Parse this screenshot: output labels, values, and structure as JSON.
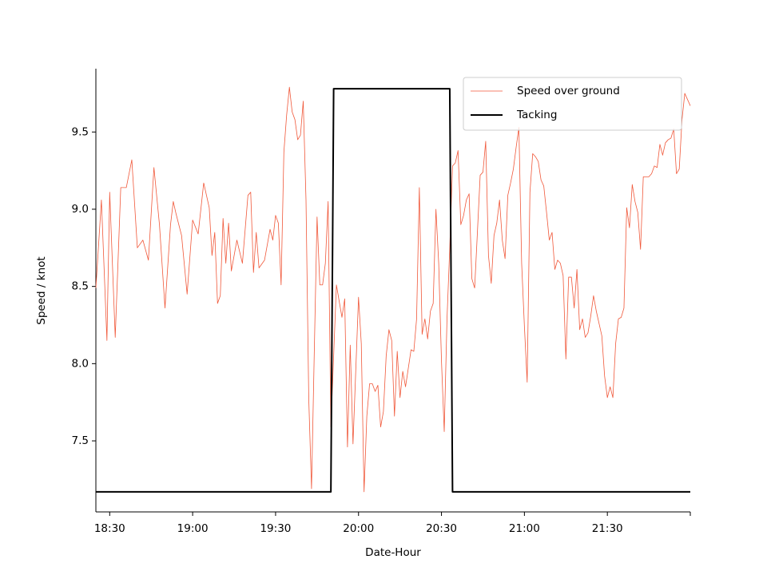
{
  "chart_data": {
    "type": "line",
    "xlabel": "Date-Hour",
    "ylabel": "Speed / knot",
    "xlim": [
      "18:25",
      "22:00"
    ],
    "xticks": [
      "18:30",
      "19:00",
      "19:30",
      "20:00",
      "20:30",
      "21:00",
      "21:30"
    ],
    "ylim": [
      7.04,
      9.91
    ],
    "yticks": [
      7.5,
      {
        "value": 8,
        "label": "8.0"
      },
      8.5,
      {
        "value": 9,
        "label": "9.0"
      },
      9.5
    ],
    "legend": "upper right",
    "series": [
      {
        "name": "Speed over ground",
        "color": "#f0583a",
        "x": [
          "18:25",
          "18:27",
          "18:29",
          "18:30",
          "18:32",
          "18:34",
          "18:36",
          "18:38",
          "18:40",
          "18:42",
          "18:44",
          "18:46",
          "18:48",
          "18:50",
          "18:52",
          "18:53",
          "18:54",
          "18:56",
          "18:58",
          "19:00",
          "19:02",
          "19:04",
          "19:06",
          "19:07",
          "19:08",
          "19:09",
          "19:10",
          "19:11",
          "19:12",
          "19:13",
          "19:14",
          "19:16",
          "19:18",
          "19:20",
          "19:21",
          "19:22",
          "19:23",
          "19:24",
          "19:26",
          "19:28",
          "19:29",
          "19:30",
          "19:31",
          "19:32",
          "19:33",
          "19:34",
          "19:35",
          "19:36",
          "19:37",
          "19:38",
          "19:39",
          "19:40",
          "19:41",
          "19:42",
          "19:43",
          "19:44",
          "19:45",
          "19:46",
          "19:47",
          "19:48",
          "19:49",
          "19:50",
          "19:52",
          "19:54",
          "19:55",
          "19:56",
          "19:57",
          "19:58",
          "20:00",
          "20:01",
          "20:02",
          "20:03",
          "20:04",
          "20:05",
          "20:06",
          "20:07",
          "20:08",
          "20:09",
          "20:10",
          "20:11",
          "20:12",
          "20:13",
          "20:14",
          "20:15",
          "20:16",
          "20:17",
          "20:18",
          "20:19",
          "20:20",
          "20:21",
          "20:22",
          "20:23",
          "20:24",
          "20:25",
          "20:26",
          "20:27",
          "20:28",
          "20:29",
          "20:30",
          "20:31",
          "20:32",
          "20:33",
          "20:34",
          "20:35",
          "20:36",
          "20:37",
          "20:38",
          "20:39",
          "20:40",
          "20:41",
          "20:42",
          "20:43",
          "20:44",
          "20:45",
          "20:46",
          "20:47",
          "20:48",
          "20:49",
          "20:50",
          "20:51",
          "20:52",
          "20:53",
          "20:54",
          "20:55",
          "20:56",
          "20:57",
          "20:58",
          "20:59",
          "21:00",
          "21:01",
          "21:02",
          "21:03",
          "21:04",
          "21:05",
          "21:06",
          "21:07",
          "21:08",
          "21:09",
          "21:10",
          "21:11",
          "21:12",
          "21:13",
          "21:14",
          "21:15",
          "21:16",
          "21:17",
          "21:18",
          "21:19",
          "21:20",
          "21:21",
          "21:22",
          "21:23",
          "21:24",
          "21:25",
          "21:26",
          "21:27",
          "21:28",
          "21:29",
          "21:30",
          "21:31",
          "21:32",
          "21:33",
          "21:34",
          "21:35",
          "21:36",
          "21:37",
          "21:38",
          "21:39",
          "21:40",
          "21:41",
          "21:42",
          "21:43",
          "21:44",
          "21:45",
          "21:46",
          "21:47",
          "21:48",
          "21:49",
          "21:50",
          "21:51",
          "21:52",
          "21:53",
          "21:54",
          "21:55",
          "21:56",
          "21:57",
          "21:58",
          "22:00"
        ],
        "values": [
          8.49,
          9.06,
          8.15,
          9.11,
          8.17,
          9.14,
          9.14,
          9.32,
          8.75,
          8.8,
          8.67,
          9.27,
          8.9,
          8.36,
          8.9,
          9.05,
          8.97,
          8.83,
          8.45,
          8.93,
          8.84,
          9.17,
          9.01,
          8.7,
          8.85,
          8.39,
          8.44,
          8.94,
          8.65,
          8.91,
          8.6,
          8.8,
          8.65,
          9.09,
          9.11,
          8.59,
          8.85,
          8.62,
          8.67,
          8.87,
          8.8,
          8.96,
          8.91,
          8.51,
          9.37,
          9.61,
          9.79,
          9.63,
          9.58,
          9.45,
          9.48,
          9.7,
          9.06,
          7.77,
          7.19,
          8.08,
          8.95,
          8.51,
          8.51,
          8.65,
          9.05,
          7.59,
          8.51,
          8.3,
          8.42,
          7.46,
          8.12,
          7.48,
          8.43,
          8.13,
          7.17,
          7.66,
          7.87,
          7.87,
          7.82,
          7.86,
          7.59,
          7.69,
          8.05,
          8.22,
          8.15,
          7.66,
          8.08,
          7.78,
          7.95,
          7.85,
          7.97,
          8.09,
          8.08,
          8.29,
          9.14,
          8.19,
          8.29,
          8.16,
          8.34,
          8.39,
          9.0,
          8.65,
          8.02,
          7.56,
          8.29,
          8.75,
          9.28,
          9.3,
          9.38,
          8.9,
          8.96,
          9.06,
          9.1,
          8.55,
          8.49,
          8.85,
          9.22,
          9.24,
          9.44,
          8.7,
          8.52,
          8.83,
          8.91,
          9.06,
          8.8,
          8.68,
          9.09,
          9.17,
          9.26,
          9.4,
          9.53,
          8.65,
          8.24,
          7.88,
          9.11,
          9.36,
          9.34,
          9.31,
          9.19,
          9.15,
          8.98,
          8.8,
          8.85,
          8.61,
          8.67,
          8.65,
          8.57,
          8.03,
          8.56,
          8.56,
          8.36,
          8.61,
          8.22,
          8.29,
          8.17,
          8.2,
          8.31,
          8.44,
          8.34,
          8.26,
          8.18,
          7.92,
          7.78,
          7.85,
          7.78,
          8.13,
          8.29,
          8.3,
          8.36,
          9.01,
          8.88,
          9.16,
          9.05,
          8.98,
          8.74,
          9.21,
          9.21,
          9.21,
          9.23,
          9.28,
          9.27,
          9.42,
          9.35,
          9.43,
          9.45,
          9.46,
          9.52,
          9.23,
          9.26,
          9.58,
          9.75,
          9.67
        ]
      },
      {
        "name": "Tacking",
        "color": "#000000",
        "x": [
          "18:25",
          "19:50",
          "19:51",
          "20:33",
          "20:34",
          "22:00"
        ],
        "values": [
          7.17,
          7.17,
          9.78,
          9.78,
          7.17,
          7.17
        ]
      }
    ]
  }
}
